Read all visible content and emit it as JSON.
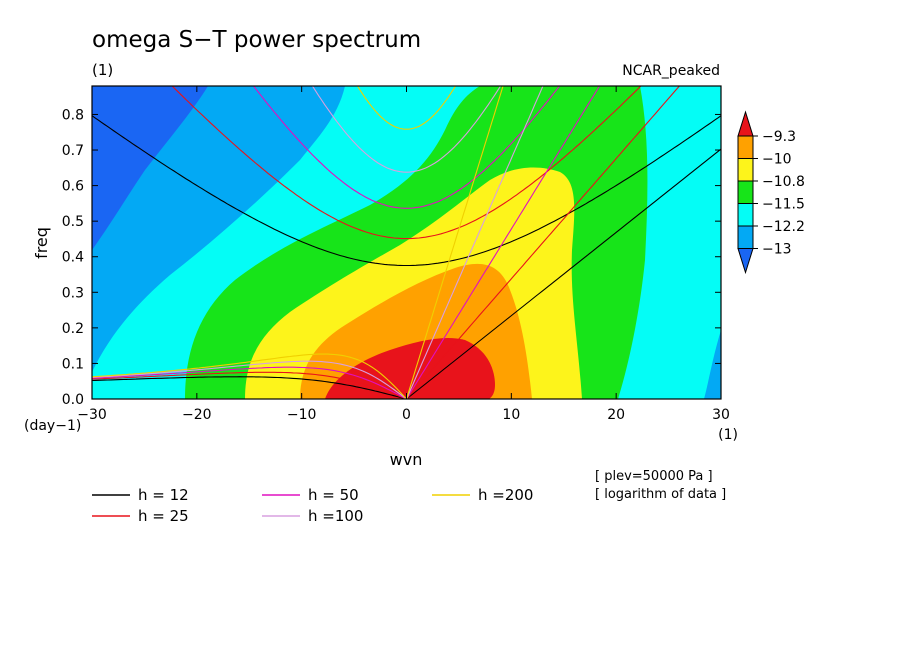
{
  "chart_data": {
    "type": "heatmap",
    "title": "omega S−T power spectrum",
    "subtitle_left": "(1)",
    "subtitle_right": "NCAR_peaked",
    "xlabel": "wvn",
    "ylabel": "freq",
    "x_unit_label": "(1)",
    "y_unit_label": "(day−1)",
    "xlim": [
      -30,
      30
    ],
    "ylim": [
      0,
      0.88
    ],
    "x_ticks": [
      -30,
      -20,
      -10,
      0,
      10,
      20,
      30
    ],
    "x_tick_labels": [
      "−30",
      "−20",
      "−10",
      "0",
      "10",
      "20",
      "30"
    ],
    "y_ticks": [
      0,
      0.1,
      0.2,
      0.3,
      0.4,
      0.5,
      0.6,
      0.7,
      0.8
    ],
    "y_tick_labels": [
      "0.0",
      "0.1",
      "0.2",
      "0.3",
      "0.4",
      "0.5",
      "0.6",
      "0.7",
      "0.8"
    ],
    "colorbar": {
      "labels": [
        "−9.3",
        "−10",
        "−10.8",
        "−11.5",
        "−12.2",
        "−13"
      ],
      "levels": [
        -9.3,
        -10,
        -10.8,
        -11.5,
        -12.2,
        -13
      ],
      "colors": [
        "#e8131b",
        "#ffa100",
        "#fdf41b",
        "#17e419",
        "#04fdf6",
        "#03a9f4",
        "#1a66f3"
      ]
    },
    "notes": [
      "[ plev=50000 Pa ]",
      "[ logarithm of data ]"
    ],
    "dispersion_legend": [
      {
        "label": "h = 12",
        "h": 12,
        "color": "#000000"
      },
      {
        "label": "h = 25",
        "h": 25,
        "color": "#e8131b"
      },
      {
        "label": "h = 50",
        "h": 50,
        "color": "#e010c0"
      },
      {
        "label": "h =100",
        "h": 100,
        "color": "#d8a0e0"
      },
      {
        "label": "h =200",
        "h": 200,
        "color": "#f0d000"
      }
    ]
  }
}
